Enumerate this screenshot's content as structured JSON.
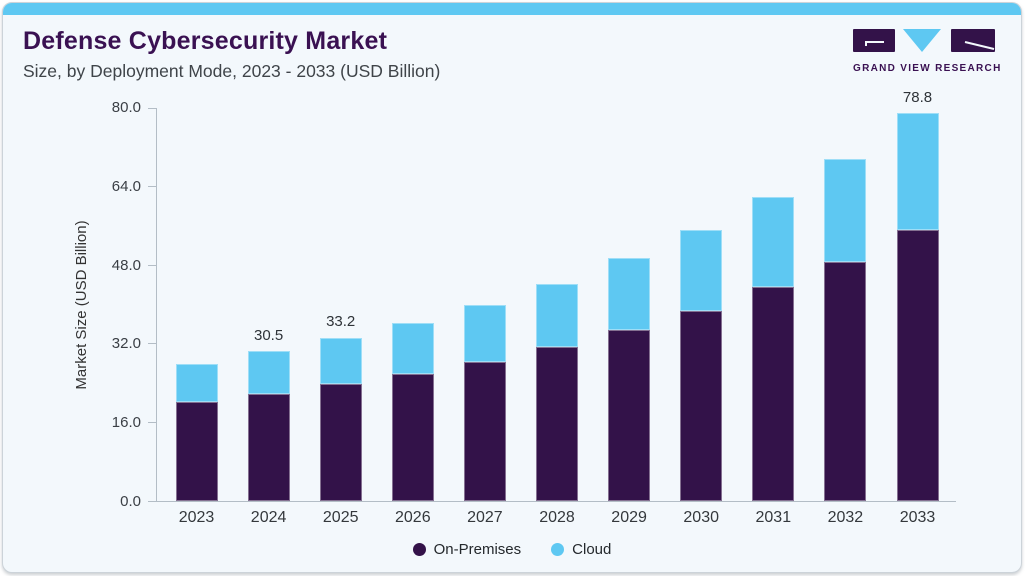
{
  "header": {
    "title": "Defense Cybersecurity Market",
    "subtitle": "Size, by Deployment Mode, 2023 - 2033 (USD Billion)",
    "title_color": "#3a1152"
  },
  "logo": {
    "name": "Grand View Research",
    "text": "GRAND VIEW RESEARCH",
    "purple": "#331249",
    "blue": "#5ec8f2"
  },
  "card": {
    "background": "#f3f8fc",
    "top_strip_color": "#5ec8f2",
    "border_color": "#ccd3d9"
  },
  "chart_data": {
    "type": "bar",
    "stacked": true,
    "title": "Defense Cybersecurity Market Size, by Deployment Mode, 2023 - 2033 (USD Billion)",
    "categories": [
      "2023",
      "2024",
      "2025",
      "2026",
      "2027",
      "2028",
      "2029",
      "2030",
      "2031",
      "2032",
      "2033"
    ],
    "series": [
      {
        "name": "On-Premises",
        "color": "#331249",
        "values": [
          20.1,
          21.8,
          23.8,
          25.8,
          28.2,
          31.2,
          34.7,
          38.6,
          43.4,
          48.6,
          55.0
        ]
      },
      {
        "name": "Cloud",
        "color": "#5ec8f2",
        "values": [
          7.8,
          8.7,
          9.4,
          10.4,
          11.7,
          12.9,
          14.6,
          16.4,
          18.3,
          20.9,
          23.8
        ]
      }
    ],
    "totals": [
      27.9,
      30.5,
      33.2,
      36.2,
      39.9,
      44.1,
      49.3,
      55.0,
      61.7,
      69.5,
      78.8
    ],
    "data_labels": [
      null,
      "30.5",
      "33.2",
      null,
      null,
      null,
      null,
      null,
      null,
      null,
      "78.8"
    ],
    "xlabel": "",
    "ylabel": "Market Size (USD Billion)",
    "ylim": [
      0,
      80
    ],
    "yticks": [
      "0.0",
      "16.0",
      "32.0",
      "48.0",
      "64.0",
      "80.0"
    ],
    "grid": false,
    "legend": [
      "On-Premises",
      "Cloud"
    ],
    "legend_position": "bottom",
    "axis_color": "#b3bdc6",
    "tick_label_color": "#3a3f45"
  }
}
